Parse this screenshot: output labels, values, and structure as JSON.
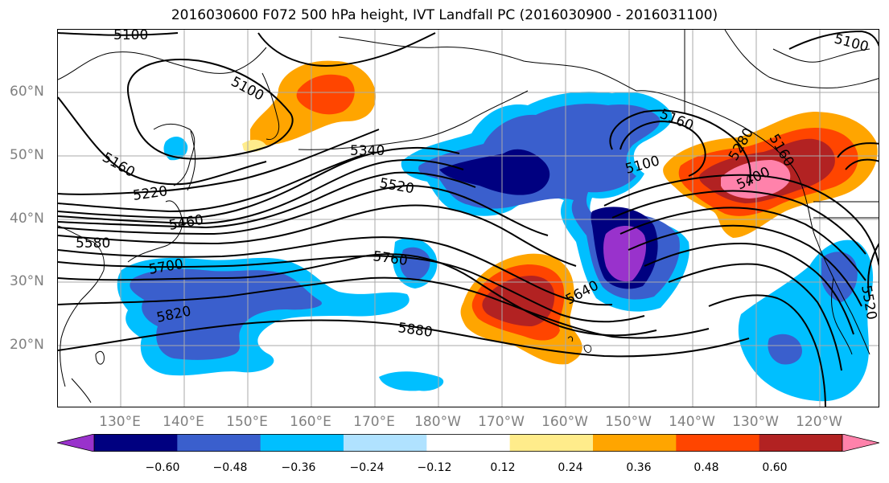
{
  "title": "2016030600 F072 500 hPa height, IVT Landfall PC (2016030900 - 2016031100)",
  "lat_labels": [
    "60°N",
    "50°N",
    "40°N",
    "30°N",
    "20°N"
  ],
  "lon_labels": [
    "130°E",
    "140°E",
    "150°E",
    "160°E",
    "170°E",
    "180°W",
    "170°W",
    "160°W",
    "150°W",
    "140°W",
    "130°W",
    "120°W"
  ],
  "contour_labels": [
    "5100",
    "5100",
    "5100",
    "5160",
    "5220",
    "5460",
    "5580",
    "5700",
    "5820",
    "5340",
    "5520",
    "5760",
    "5880",
    "5640",
    "5160",
    "5100",
    "5400",
    "5280",
    "5160",
    "5520"
  ],
  "colorbar": {
    "colors": [
      "#9932cc",
      "#000080",
      "#3a5fcd",
      "#00bfff",
      "#b0e2ff",
      "#ffffff",
      "#ffec8b",
      "#ffa500",
      "#ff4500",
      "#b22222",
      "#ff82ab"
    ],
    "tick_labels": [
      "−0.60",
      "−0.48",
      "−0.36",
      "−0.24",
      "−0.12",
      "0.12",
      "0.24",
      "0.36",
      "0.48",
      "0.60"
    ]
  },
  "legend_colors": {
    "contour": "#000000",
    "gridline": "#aaaaaa",
    "coastline": "#000000"
  }
}
